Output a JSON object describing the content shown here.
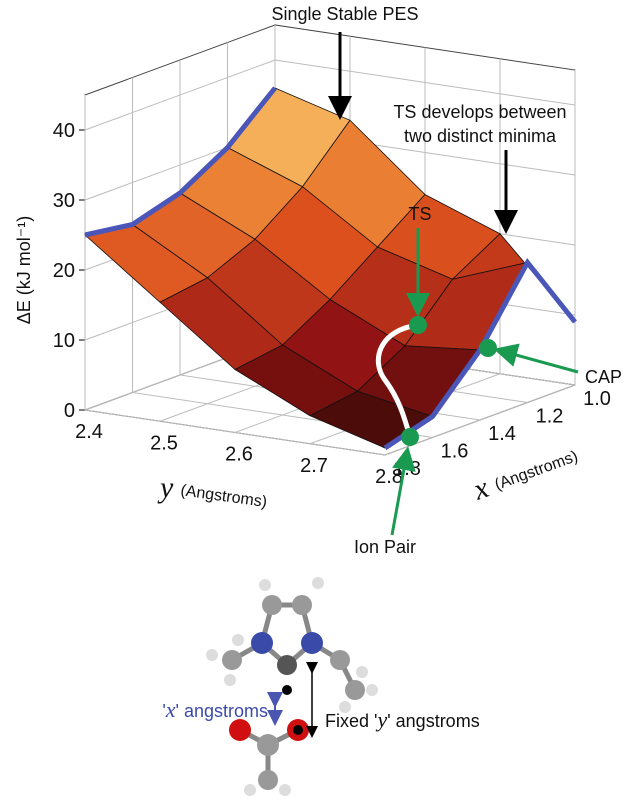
{
  "chart_data": {
    "type": "surface",
    "zlabel": "ΔE (kJ mol⁻¹)",
    "xlabel": {
      "symbol": "x",
      "unit": "(Angstroms)"
    },
    "ylabel": {
      "symbol": "y",
      "unit": "(Angstroms)"
    },
    "x": [
      1.0,
      1.2,
      1.4,
      1.6,
      1.8
    ],
    "y": [
      2.4,
      2.5,
      2.6,
      2.7,
      2.8
    ],
    "z": [
      [
        36,
        30,
        26,
        24,
        25
      ],
      [
        33,
        26,
        21,
        18,
        17
      ],
      [
        24,
        19,
        14,
        10,
        9
      ],
      [
        20,
        16,
        9,
        5,
        4
      ],
      [
        9,
        20,
        10,
        3,
        1
      ]
    ],
    "xlim": [
      1.0,
      1.8
    ],
    "ylim": [
      2.4,
      2.8
    ],
    "zlim": [
      0,
      45
    ],
    "xticks": [
      {
        "value": 1.0,
        "label": "1.0"
      },
      1.2,
      1.4,
      1.6,
      1.8
    ],
    "yticks": [
      2.4,
      2.5,
      2.6,
      2.7,
      2.8
    ],
    "zticks": [
      0,
      10,
      20,
      30,
      40
    ],
    "annotations": {
      "single": "Single Stable PES",
      "ts_develops": [
        "TS develops between",
        "two distinct minima"
      ],
      "ts": "TS",
      "cap": "CAP",
      "ion_pair": "Ion Pair"
    }
  },
  "molecule": {
    "x_label": [
      "'",
      "x",
      "' angstroms"
    ],
    "y_label": [
      "Fixed '",
      "y",
      "' angstroms"
    ]
  }
}
